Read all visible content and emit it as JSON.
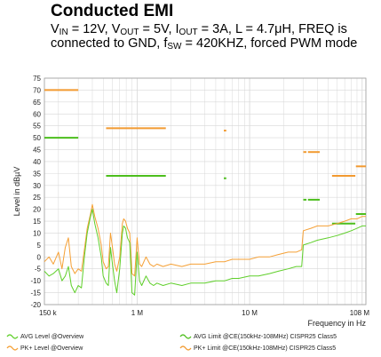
{
  "chart_data": {
    "type": "line",
    "title": "Conducted EMI",
    "subtitle_parts": {
      "vin_main": "V",
      "vin_sub": "IN",
      "vin_rest": " = 12V, ",
      "vout_main": "V",
      "vout_sub": "OUT",
      "vout_rest": " = 5V, ",
      "iout_main": "I",
      "iout_sub": "OUT",
      "iout_rest": " = 3A, L = 4.7μH, FREQ is connected to GND, ",
      "fsw_main": "f",
      "fsw_sub": "SW",
      "fsw_rest": " = 420KHZ, forced PWM mode"
    },
    "xlabel": "Frequency in Hz",
    "ylabel": "Level in dBµV",
    "x_scale": "log",
    "xlim_hz": [
      150000,
      108000000
    ],
    "ylim": [
      -20,
      75
    ],
    "x_ticks": [
      {
        "label": "150 k",
        "hz": 150000
      },
      {
        "label": "1 M",
        "hz": 1000000
      },
      {
        "label": "10 M",
        "hz": 10000000
      },
      {
        "label": "108 M",
        "hz": 108000000
      }
    ],
    "y_ticks": [
      "-20",
      "-15",
      "-10",
      "-5",
      "0",
      "5",
      "10",
      "15",
      "20",
      "25",
      "30",
      "35",
      "40",
      "45",
      "50",
      "55",
      "60",
      "65",
      "70",
      "75"
    ],
    "grid": true,
    "colors": {
      "avg": "#5fcf2a",
      "pk": "#f5a035",
      "avg_limit": "#4cbe1c",
      "pk_limit": "#f29a30",
      "grid": "#d8d8d8"
    },
    "limits": {
      "pk": [
        {
          "f1": 150000,
          "f2": 300000,
          "y": 70
        },
        {
          "f1": 530000,
          "f2": 1800000,
          "y": 54
        },
        {
          "f1": 5900000,
          "f2": 6200000,
          "y": 53
        },
        {
          "f1": 30000000,
          "f2": 32000000,
          "y": 44
        },
        {
          "f1": 33000000,
          "f2": 42000000,
          "y": 44
        },
        {
          "f1": 54000000,
          "f2": 87000000,
          "y": 34
        },
        {
          "f1": 88000000,
          "f2": 108000000,
          "y": 38
        }
      ],
      "avg": [
        {
          "f1": 150000,
          "f2": 300000,
          "y": 50
        },
        {
          "f1": 530000,
          "f2": 1800000,
          "y": 34
        },
        {
          "f1": 5900000,
          "f2": 6200000,
          "y": 33
        },
        {
          "f1": 30000000,
          "f2": 32000000,
          "y": 24
        },
        {
          "f1": 33000000,
          "f2": 42000000,
          "y": 24
        },
        {
          "f1": 54000000,
          "f2": 87000000,
          "y": 14
        },
        {
          "f1": 88000000,
          "f2": 108000000,
          "y": 18
        }
      ]
    },
    "series": [
      {
        "key": "pk",
        "points": [
          [
            150000,
            -2
          ],
          [
            165000,
            0
          ],
          [
            180000,
            -3
          ],
          [
            200000,
            2
          ],
          [
            215000,
            -5
          ],
          [
            230000,
            4
          ],
          [
            245000,
            8
          ],
          [
            260000,
            -4
          ],
          [
            280000,
            -7
          ],
          [
            300000,
            -5
          ],
          [
            320000,
            -6
          ],
          [
            340000,
            3
          ],
          [
            360000,
            12
          ],
          [
            385000,
            18
          ],
          [
            400000,
            22
          ],
          [
            420000,
            17
          ],
          [
            450000,
            12
          ],
          [
            480000,
            5
          ],
          [
            500000,
            -2
          ],
          [
            530000,
            -5
          ],
          [
            555000,
            -4
          ],
          [
            580000,
            10
          ],
          [
            600000,
            5
          ],
          [
            630000,
            -3
          ],
          [
            660000,
            -6
          ],
          [
            700000,
            0
          ],
          [
            740000,
            14
          ],
          [
            760000,
            16
          ],
          [
            790000,
            15
          ],
          [
            820000,
            12
          ],
          [
            860000,
            10
          ],
          [
            900000,
            -7
          ],
          [
            950000,
            -8
          ],
          [
            1000000,
            8
          ],
          [
            1050000,
            -3
          ],
          [
            1100000,
            -4
          ],
          [
            1200000,
            0
          ],
          [
            1300000,
            -3
          ],
          [
            1400000,
            -4
          ],
          [
            1500000,
            -3
          ],
          [
            1700000,
            -4
          ],
          [
            2000000,
            -3
          ],
          [
            2500000,
            -4
          ],
          [
            3000000,
            -3
          ],
          [
            3500000,
            -3
          ],
          [
            4000000,
            -3
          ],
          [
            5000000,
            -2
          ],
          [
            6000000,
            -2
          ],
          [
            7000000,
            -1
          ],
          [
            8000000,
            -1
          ],
          [
            10000000,
            -1
          ],
          [
            12000000,
            0
          ],
          [
            15000000,
            0
          ],
          [
            18000000,
            1
          ],
          [
            22000000,
            2
          ],
          [
            26000000,
            2
          ],
          [
            29000000,
            3
          ],
          [
            30000000,
            11
          ],
          [
            35000000,
            12
          ],
          [
            40000000,
            13
          ],
          [
            50000000,
            13
          ],
          [
            60000000,
            14
          ],
          [
            70000000,
            15
          ],
          [
            80000000,
            16
          ],
          [
            90000000,
            16
          ],
          [
            100000000,
            17
          ],
          [
            108000000,
            17
          ]
        ]
      },
      {
        "key": "avg",
        "points": [
          [
            150000,
            -6
          ],
          [
            165000,
            -8
          ],
          [
            180000,
            -7
          ],
          [
            200000,
            -5
          ],
          [
            215000,
            -10
          ],
          [
            230000,
            -8
          ],
          [
            245000,
            -4
          ],
          [
            260000,
            -12
          ],
          [
            280000,
            -15
          ],
          [
            300000,
            -12
          ],
          [
            320000,
            -13
          ],
          [
            340000,
            0
          ],
          [
            360000,
            10
          ],
          [
            385000,
            17
          ],
          [
            400000,
            20
          ],
          [
            420000,
            14
          ],
          [
            450000,
            8
          ],
          [
            480000,
            0
          ],
          [
            500000,
            -8
          ],
          [
            530000,
            -11
          ],
          [
            555000,
            -12
          ],
          [
            580000,
            4
          ],
          [
            600000,
            -2
          ],
          [
            630000,
            -10
          ],
          [
            660000,
            -15
          ],
          [
            700000,
            -5
          ],
          [
            740000,
            10
          ],
          [
            760000,
            13
          ],
          [
            790000,
            12
          ],
          [
            820000,
            8
          ],
          [
            860000,
            6
          ],
          [
            900000,
            -15
          ],
          [
            950000,
            -16
          ],
          [
            1000000,
            2
          ],
          [
            1050000,
            -10
          ],
          [
            1100000,
            -12
          ],
          [
            1200000,
            -8
          ],
          [
            1300000,
            -11
          ],
          [
            1400000,
            -12
          ],
          [
            1500000,
            -11
          ],
          [
            1700000,
            -12
          ],
          [
            2000000,
            -11
          ],
          [
            2500000,
            -12
          ],
          [
            3000000,
            -11
          ],
          [
            3500000,
            -11
          ],
          [
            4000000,
            -11
          ],
          [
            5000000,
            -10
          ],
          [
            6000000,
            -10
          ],
          [
            7000000,
            -9
          ],
          [
            8000000,
            -9
          ],
          [
            10000000,
            -8
          ],
          [
            12000000,
            -8
          ],
          [
            15000000,
            -7
          ],
          [
            18000000,
            -6
          ],
          [
            22000000,
            -5
          ],
          [
            26000000,
            -4
          ],
          [
            29000000,
            -4
          ],
          [
            30000000,
            5
          ],
          [
            35000000,
            6
          ],
          [
            40000000,
            7
          ],
          [
            50000000,
            8
          ],
          [
            60000000,
            9
          ],
          [
            70000000,
            10
          ],
          [
            80000000,
            11
          ],
          [
            90000000,
            12
          ],
          [
            100000000,
            13
          ],
          [
            108000000,
            13
          ]
        ]
      }
    ],
    "legend": {
      "placement": "bottom",
      "avg_level": "AVG Level @Overview",
      "pk_level": "PK+ Level @Overview",
      "avg_limit": "AVG Limit @CE(150kHz-108MHz) CISPR25 Class5",
      "pk_limit": "PK+ Limit @CE(150kHz-108MHz) CISPR25 Class5"
    }
  }
}
